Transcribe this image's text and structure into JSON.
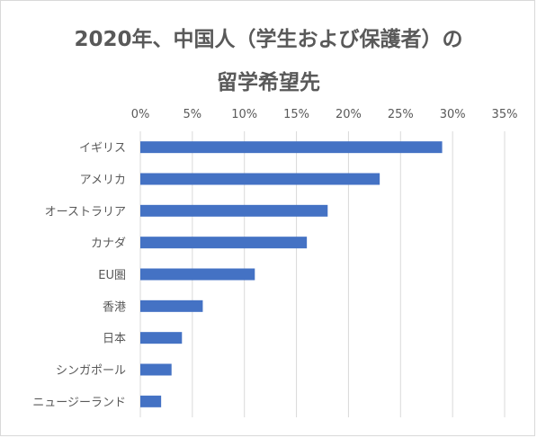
{
  "chart_data": {
    "type": "bar",
    "orientation": "horizontal",
    "title_lines": [
      "2020年、中国人（学生および保護者）の",
      "留学希望先"
    ],
    "xlabel": "",
    "ylabel": "",
    "xlim": [
      0,
      0.35
    ],
    "ticks": [
      0,
      0.05,
      0.1,
      0.15,
      0.2,
      0.25,
      0.3,
      0.35
    ],
    "tick_labels": [
      "0%",
      "5%",
      "10%",
      "15%",
      "20%",
      "25%",
      "30%",
      "35%"
    ],
    "categories": [
      "イギリス",
      "アメリカ",
      "オーストラリア",
      "カナダ",
      "EU圏",
      "香港",
      "日本",
      "シンガポール",
      "ニュージーランド"
    ],
    "values": [
      0.29,
      0.23,
      0.18,
      0.16,
      0.11,
      0.06,
      0.04,
      0.03,
      0.02
    ],
    "grid": true,
    "legend": "none",
    "bar_color": "#4472c4",
    "gridline_color": "#d9d9d9"
  }
}
